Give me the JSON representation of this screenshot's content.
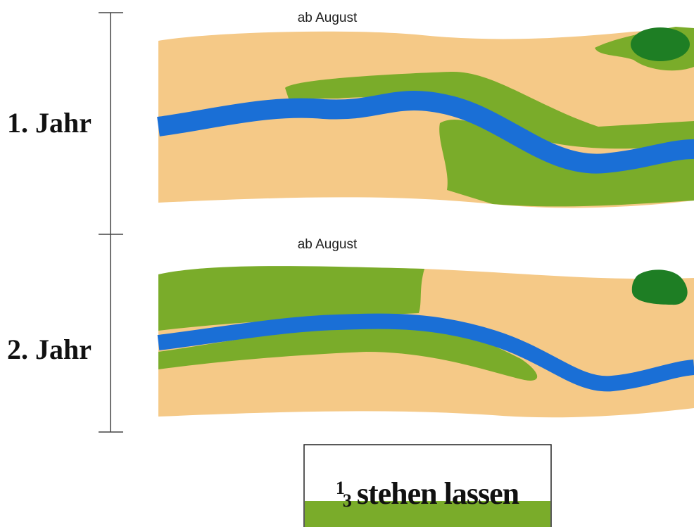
{
  "panels": [
    {
      "year": "1. Jahr",
      "caption": "ab August"
    },
    {
      "year": "2. Jahr",
      "caption": "ab August"
    }
  ],
  "legend": {
    "numerator": "1",
    "denominator": "3",
    "label": "stehen lassen"
  }
}
